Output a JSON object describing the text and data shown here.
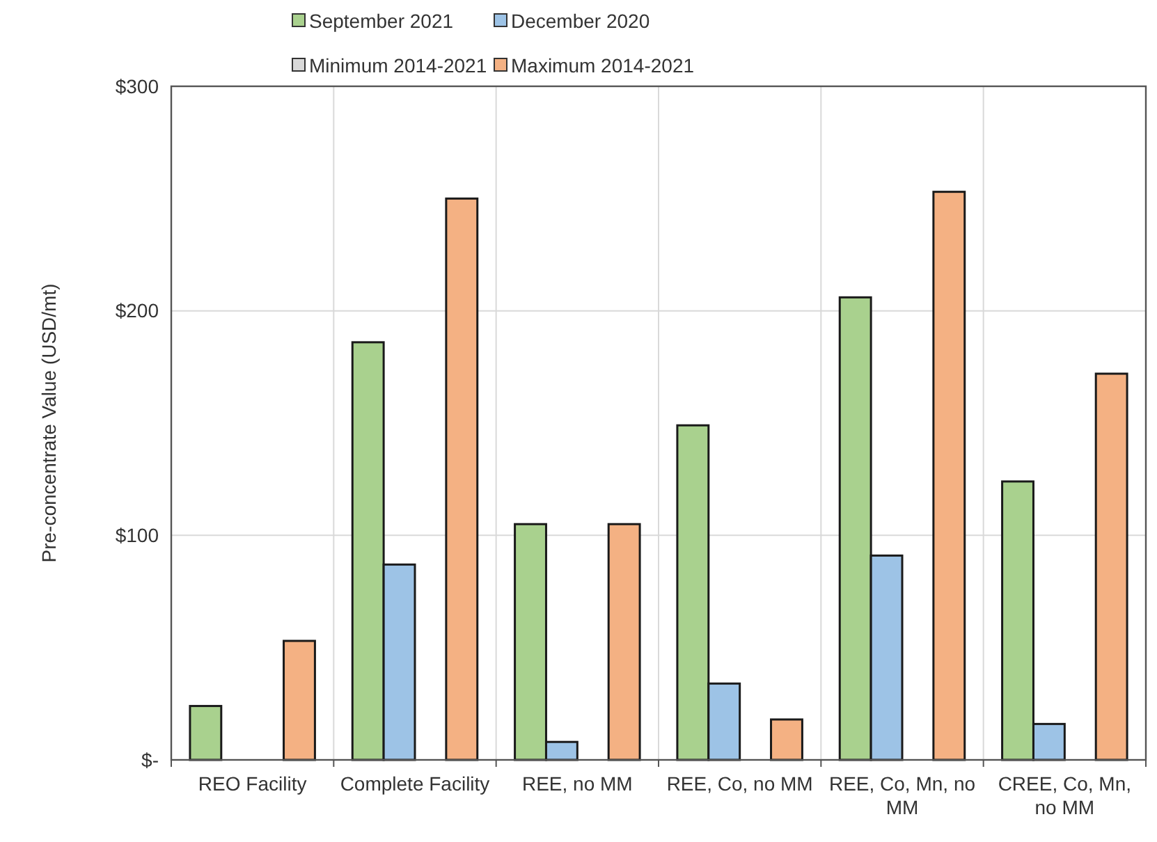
{
  "chart_data": {
    "type": "bar",
    "ylabel": "Pre-concentrate Value (USD/mt)",
    "categories": [
      "REO Facility",
      "Complete Facility",
      "REE, no MM",
      "REE, Co, no MM",
      "REE, Co, Mn, no MM",
      "CREE, Co, Mn, no MM"
    ],
    "series": [
      {
        "name": "September 2021",
        "color": "#a9d18e",
        "values": [
          24,
          186,
          105,
          149,
          206,
          124
        ]
      },
      {
        "name": "December 2020",
        "color": "#9dc3e6",
        "values": [
          null,
          87,
          8,
          34,
          91,
          16
        ]
      },
      {
        "name": "Minimum 2014-2021",
        "color": "#d9d9d9",
        "values": [
          null,
          null,
          null,
          null,
          null,
          null
        ]
      },
      {
        "name": "Maximum 2014-2021",
        "color": "#f4b183",
        "values": [
          53,
          250,
          105,
          18,
          253,
          172
        ]
      }
    ],
    "ylim": [
      0,
      300
    ],
    "yticks": [
      {
        "value": 0,
        "label": "$-"
      },
      {
        "value": 100,
        "label": "$100"
      },
      {
        "value": 200,
        "label": "$200"
      },
      {
        "value": 300,
        "label": "$300"
      }
    ],
    "grid": true,
    "legend": "top"
  }
}
